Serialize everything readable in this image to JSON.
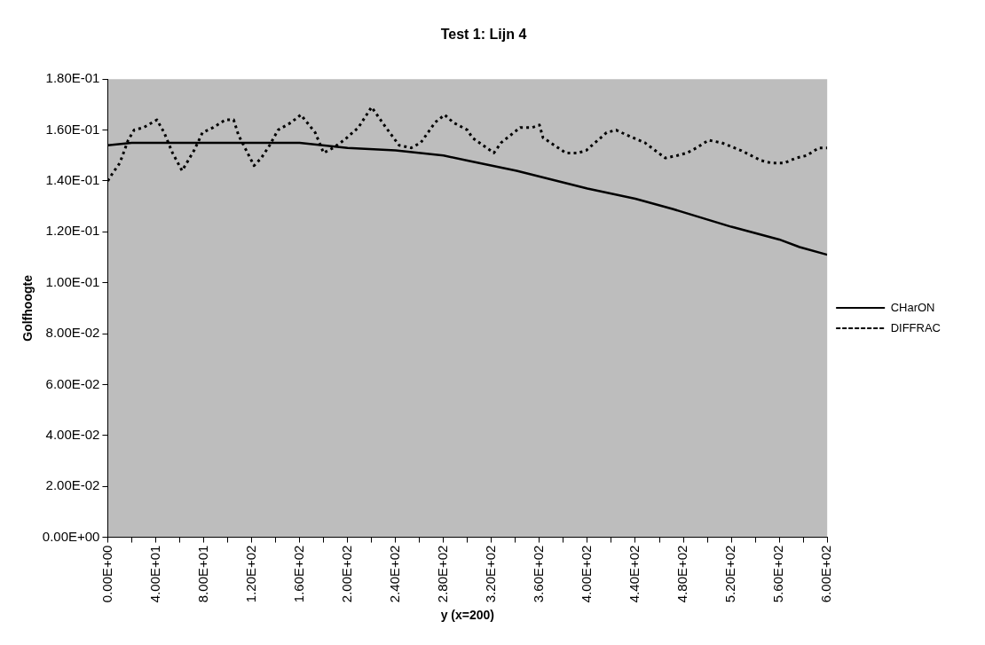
{
  "chart_data": {
    "type": "line",
    "title": "Test 1: Lijn 4",
    "xlabel": "y (x=200)",
    "ylabel": "Golfhoogte",
    "xlim": [
      0,
      600
    ],
    "xticks": [
      {
        "value": 0,
        "label": "0.00E+00"
      },
      {
        "value": 20,
        "label": null
      },
      {
        "value": 40,
        "label": "4.00E+01"
      },
      {
        "value": 60,
        "label": null
      },
      {
        "value": 80,
        "label": "8.00E+01"
      },
      {
        "value": 100,
        "label": null
      },
      {
        "value": 120,
        "label": "1.20E+02"
      },
      {
        "value": 140,
        "label": null
      },
      {
        "value": 160,
        "label": "1.60E+02"
      },
      {
        "value": 180,
        "label": null
      },
      {
        "value": 200,
        "label": "2.00E+02"
      },
      {
        "value": 220,
        "label": null
      },
      {
        "value": 240,
        "label": "2.40E+02"
      },
      {
        "value": 260,
        "label": null
      },
      {
        "value": 280,
        "label": "2.80E+02"
      },
      {
        "value": 300,
        "label": null
      },
      {
        "value": 320,
        "label": "3.20E+02"
      },
      {
        "value": 340,
        "label": null
      },
      {
        "value": 360,
        "label": "3.60E+02"
      },
      {
        "value": 380,
        "label": null
      },
      {
        "value": 400,
        "label": "4.00E+02"
      },
      {
        "value": 420,
        "label": null
      },
      {
        "value": 440,
        "label": "4.40E+02"
      },
      {
        "value": 460,
        "label": null
      },
      {
        "value": 480,
        "label": "4.80E+02"
      },
      {
        "value": 500,
        "label": null
      },
      {
        "value": 520,
        "label": "5.20E+02"
      },
      {
        "value": 540,
        "label": null
      },
      {
        "value": 560,
        "label": "5.60E+02"
      },
      {
        "value": 580,
        "label": null
      },
      {
        "value": 600,
        "label": "6.00E+02"
      }
    ],
    "ylim": [
      0,
      0.18
    ],
    "yticks": [
      {
        "value": 0,
        "label": "0.00E+00"
      },
      {
        "value": 0.02,
        "label": "2.00E-02"
      },
      {
        "value": 0.04,
        "label": "4.00E-02"
      },
      {
        "value": 0.06,
        "label": "6.00E-02"
      },
      {
        "value": 0.08,
        "label": "8.00E-02"
      },
      {
        "value": 0.1,
        "label": "1.00E-01"
      },
      {
        "value": 0.12,
        "label": "1.20E-01"
      },
      {
        "value": 0.14,
        "label": "1.40E-01"
      },
      {
        "value": 0.16,
        "label": "1.60E-01"
      },
      {
        "value": 0.18,
        "label": "1.80E-01"
      }
    ],
    "grid": false,
    "legend": "right",
    "marker": "none",
    "series": [
      {
        "name": "CHarON",
        "color": "#000000",
        "line_style": "solid",
        "x": [
          0,
          20,
          40,
          80,
          120,
          160,
          200,
          240,
          280,
          300,
          341,
          400,
          440,
          471,
          520,
          560,
          577,
          600
        ],
        "values": [
          0.154,
          0.155,
          0.155,
          0.155,
          0.155,
          0.155,
          0.153,
          0.152,
          0.15,
          0.148,
          0.144,
          0.137,
          0.133,
          0.129,
          0.122,
          0.117,
          0.114,
          0.111
        ]
      },
      {
        "name": "DIFFRAC",
        "color": "#000000",
        "line_style": "dotted",
        "x": [
          0,
          4,
          10,
          17,
          22,
          30,
          41,
          47,
          54,
          62,
          67,
          72,
          79,
          88,
          98,
          105,
          109,
          122,
          128,
          135,
          142,
          153,
          161,
          173,
          180,
          188,
          197,
          209,
          220,
          232,
          243,
          253,
          261,
          273,
          281,
          288,
          300,
          304,
          322,
          328,
          344,
          354,
          360,
          363,
          382,
          392,
          399,
          416,
          424,
          433,
          448,
          465,
          475,
          483,
          491,
          501,
          512,
          528,
          545,
          554,
          564,
          574,
          583,
          593,
          600
        ],
        "values": [
          0.14,
          0.143,
          0.147,
          0.156,
          0.16,
          0.161,
          0.164,
          0.159,
          0.151,
          0.144,
          0.148,
          0.152,
          0.159,
          0.161,
          0.164,
          0.164,
          0.158,
          0.146,
          0.149,
          0.154,
          0.16,
          0.163,
          0.166,
          0.159,
          0.151,
          0.153,
          0.156,
          0.161,
          0.169,
          0.161,
          0.154,
          0.153,
          0.155,
          0.163,
          0.166,
          0.163,
          0.16,
          0.157,
          0.151,
          0.155,
          0.161,
          0.161,
          0.162,
          0.157,
          0.151,
          0.151,
          0.152,
          0.159,
          0.16,
          0.158,
          0.155,
          0.149,
          0.15,
          0.151,
          0.153,
          0.156,
          0.155,
          0.152,
          0.148,
          0.147,
          0.147,
          0.149,
          0.15,
          0.153,
          0.153
        ]
      }
    ]
  }
}
